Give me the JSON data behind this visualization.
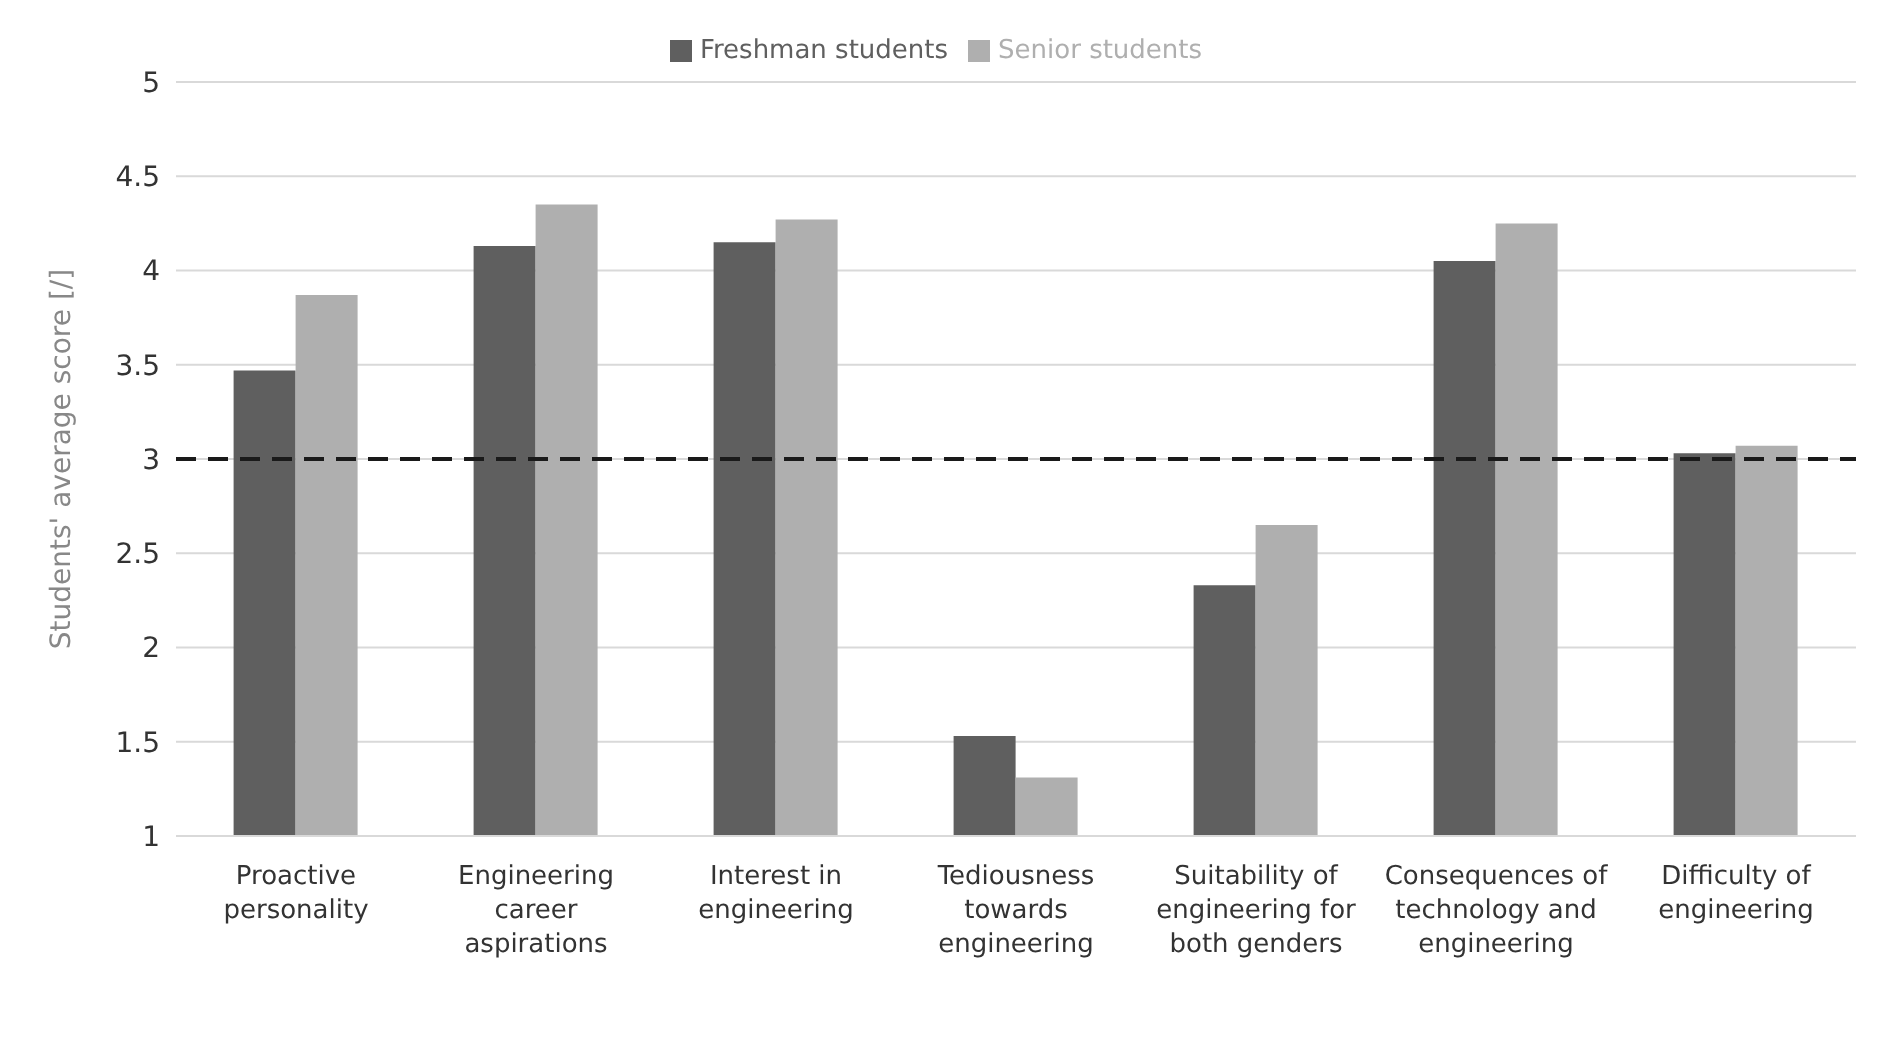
{
  "chart_data": {
    "type": "bar",
    "ylabel": "Students' average score [/]",
    "categories": [
      "Proactive personality",
      "Engineering career aspirations",
      "Interest in engineering",
      "Tediousness towards engineering",
      "Suitability of engineering for both genders",
      "Consequences of technology and engineering",
      "Difficulty of engineering"
    ],
    "series": [
      {
        "name": "Freshman students",
        "color": "#5f5f5f",
        "values": [
          3.47,
          4.13,
          4.15,
          1.53,
          2.33,
          4.05,
          3.03
        ]
      },
      {
        "name": "Senior students",
        "color": "#afafaf",
        "values": [
          3.87,
          4.35,
          4.27,
          1.31,
          2.65,
          4.25,
          3.07
        ]
      }
    ],
    "ylim": [
      1,
      5
    ],
    "yticks": [
      1,
      1.5,
      2,
      2.5,
      3,
      3.5,
      4,
      4.5,
      5
    ],
    "grid": "y",
    "legend": "top",
    "ref_lines": [
      {
        "axis": "y",
        "value": 3,
        "color": "#1a1a1a",
        "line_style": "dashed"
      }
    ]
  }
}
